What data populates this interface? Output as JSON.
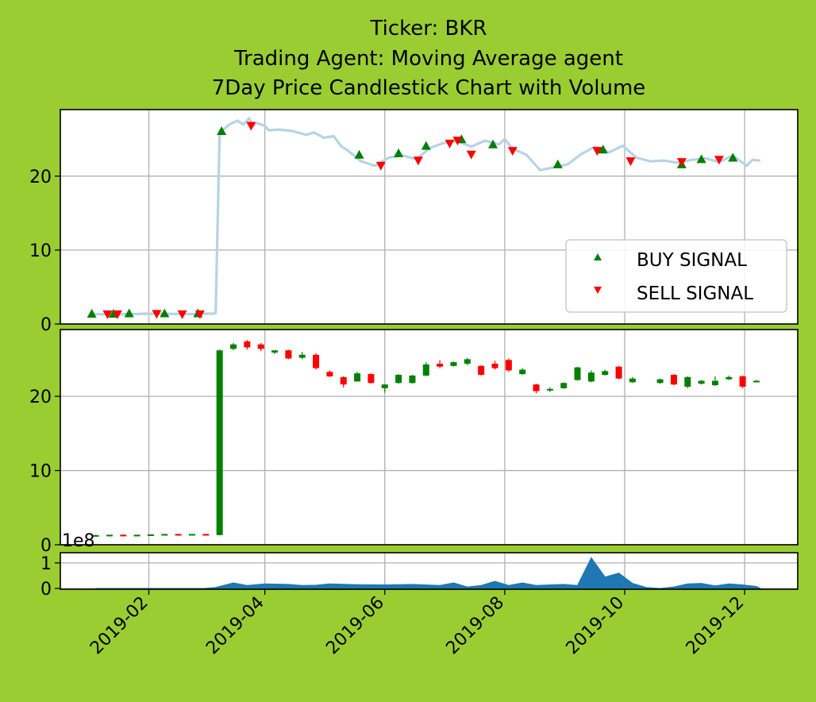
{
  "title": {
    "line1": "Ticker: BKR",
    "line2": "Trading Agent: Moving Average agent",
    "line3": "7Day Price Candlestick Chart with Volume"
  },
  "colors": {
    "background": "#9acd32",
    "price_line": "#b7d3e6",
    "buy": "#007f00",
    "sell": "#ff0000",
    "candle_up": "#008000",
    "candle_down": "#ff0000",
    "volume_fill": "#1f77b4",
    "grid": "#b0b0b0"
  },
  "legend": {
    "buy": "BUY SIGNAL",
    "sell": "SELL SIGNAL",
    "location": "lower-right"
  },
  "chart_data": [
    {
      "type": "line",
      "panel": "price",
      "xlim": [
        "2018-12-18",
        "2019-12-28"
      ],
      "ylim": [
        0,
        29
      ],
      "yticks": [
        0,
        10,
        20
      ],
      "grid": true,
      "series": [
        {
          "role": "close price line",
          "points": [
            [
              "2019-01-02",
              1.35
            ],
            [
              "2019-01-15",
              1.3
            ],
            [
              "2019-02-01",
              1.4
            ],
            [
              "2019-02-15",
              1.35
            ],
            [
              "2019-02-28",
              1.35
            ],
            [
              "2019-03-01",
              1.4
            ],
            [
              "2019-03-06",
              1.4
            ],
            [
              "2019-03-07",
              1.5
            ],
            [
              "2019-03-09",
              26.0
            ],
            [
              "2019-03-11",
              26.3
            ],
            [
              "2019-03-14",
              27.0
            ],
            [
              "2019-03-18",
              27.5
            ],
            [
              "2019-03-21",
              27.0
            ],
            [
              "2019-03-24",
              27.8
            ],
            [
              "2019-03-26",
              26.8
            ],
            [
              "2019-03-28",
              27.2
            ],
            [
              "2019-04-01",
              26.8
            ],
            [
              "2019-04-03",
              26.2
            ],
            [
              "2019-04-08",
              26.3
            ],
            [
              "2019-04-15",
              26.1
            ],
            [
              "2019-04-22",
              25.6
            ],
            [
              "2019-04-26",
              25.9
            ],
            [
              "2019-05-01",
              25.2
            ],
            [
              "2019-05-06",
              25.4
            ],
            [
              "2019-05-10",
              24.0
            ],
            [
              "2019-05-13",
              23.5
            ],
            [
              "2019-05-20",
              22.0
            ],
            [
              "2019-05-27",
              21.4
            ],
            [
              "2019-06-03",
              22.5
            ],
            [
              "2019-06-10",
              22.8
            ],
            [
              "2019-06-17",
              22.3
            ],
            [
              "2019-06-24",
              23.8
            ],
            [
              "2019-07-01",
              24.5
            ],
            [
              "2019-07-08",
              24.7
            ],
            [
              "2019-07-15",
              24.0
            ],
            [
              "2019-07-22",
              24.8
            ],
            [
              "2019-07-29",
              24.3
            ],
            [
              "2019-08-01",
              25.0
            ],
            [
              "2019-08-05",
              23.7
            ],
            [
              "2019-08-12",
              22.9
            ],
            [
              "2019-08-19",
              20.8
            ],
            [
              "2019-08-26",
              21.2
            ],
            [
              "2019-09-02",
              21.6
            ],
            [
              "2019-09-09",
              23.0
            ],
            [
              "2019-09-16",
              24.0
            ],
            [
              "2019-09-23",
              23.2
            ],
            [
              "2019-09-30",
              24.1
            ],
            [
              "2019-10-07",
              22.5
            ],
            [
              "2019-10-14",
              22.0
            ],
            [
              "2019-10-21",
              22.1
            ],
            [
              "2019-10-28",
              21.8
            ],
            [
              "2019-11-04",
              22.2
            ],
            [
              "2019-11-11",
              22.4
            ],
            [
              "2019-11-18",
              21.9
            ],
            [
              "2019-11-25",
              22.8
            ],
            [
              "2019-12-02",
              21.4
            ],
            [
              "2019-12-05",
              22.2
            ],
            [
              "2019-12-09",
              22.1
            ]
          ]
        },
        {
          "name": "BUY SIGNAL",
          "marker": "triangle-up",
          "points": [
            [
              "2019-01-03",
              1.4
            ],
            [
              "2019-01-14",
              1.4
            ],
            [
              "2019-01-22",
              1.45
            ],
            [
              "2019-02-09",
              1.45
            ],
            [
              "2019-02-26",
              1.45
            ],
            [
              "2019-03-10",
              26.1
            ],
            [
              "2019-05-19",
              22.9
            ],
            [
              "2019-06-08",
              23.1
            ],
            [
              "2019-06-22",
              24.1
            ],
            [
              "2019-07-10",
              25.0
            ],
            [
              "2019-07-26",
              24.3
            ],
            [
              "2019-08-28",
              21.6
            ],
            [
              "2019-09-20",
              23.6
            ],
            [
              "2019-10-30",
              21.6
            ],
            [
              "2019-11-09",
              22.3
            ],
            [
              "2019-11-25",
              22.5
            ]
          ]
        },
        {
          "name": "SELL SIGNAL",
          "marker": "triangle-down",
          "points": [
            [
              "2019-01-11",
              1.3
            ],
            [
              "2019-01-16",
              1.3
            ],
            [
              "2019-02-05",
              1.35
            ],
            [
              "2019-02-18",
              1.3
            ],
            [
              "2019-02-27",
              1.3
            ],
            [
              "2019-03-25",
              26.8
            ],
            [
              "2019-05-30",
              21.4
            ],
            [
              "2019-06-18",
              22.1
            ],
            [
              "2019-07-04",
              24.4
            ],
            [
              "2019-07-08",
              24.8
            ],
            [
              "2019-07-15",
              22.9
            ],
            [
              "2019-08-05",
              23.4
            ],
            [
              "2019-09-17",
              23.4
            ],
            [
              "2019-10-04",
              22.0
            ],
            [
              "2019-10-30",
              21.9
            ],
            [
              "2019-11-18",
              22.2
            ]
          ]
        }
      ]
    },
    {
      "type": "candlestick",
      "panel": "candles",
      "xlim": [
        "2019-12-18",
        "2019-12-28"
      ],
      "ylim": [
        0,
        29
      ],
      "yticks": [
        0,
        10,
        20
      ],
      "grid": true,
      "columns": [
        "date",
        "open",
        "high",
        "low",
        "close"
      ],
      "candles": [
        [
          "2019-01-05",
          1.3,
          1.35,
          1.25,
          1.3
        ],
        [
          "2019-01-12",
          1.3,
          1.35,
          1.25,
          1.35
        ],
        [
          "2019-01-19",
          1.35,
          1.4,
          1.3,
          1.3
        ],
        [
          "2019-01-26",
          1.3,
          1.35,
          1.25,
          1.35
        ],
        [
          "2019-02-02",
          1.35,
          1.4,
          1.3,
          1.4
        ],
        [
          "2019-02-09",
          1.4,
          1.45,
          1.35,
          1.45
        ],
        [
          "2019-02-16",
          1.45,
          1.5,
          1.4,
          1.4
        ],
        [
          "2019-02-23",
          1.4,
          1.45,
          1.35,
          1.45
        ],
        [
          "2019-03-02",
          1.45,
          1.5,
          1.4,
          1.4
        ],
        [
          "2019-03-09",
          1.3,
          26.3,
          1.3,
          26.2
        ],
        [
          "2019-03-16",
          26.4,
          27.2,
          26.2,
          27.0
        ],
        [
          "2019-03-23",
          27.4,
          27.6,
          26.3,
          26.6
        ],
        [
          "2019-03-30",
          27.0,
          27.2,
          26.1,
          26.4
        ],
        [
          "2019-04-06",
          25.9,
          26.2,
          25.7,
          26.2
        ],
        [
          "2019-04-13",
          26.2,
          26.3,
          25.0,
          25.1
        ],
        [
          "2019-04-20",
          25.2,
          26.0,
          25.0,
          25.6
        ],
        [
          "2019-04-27",
          25.6,
          25.8,
          23.6,
          23.8
        ],
        [
          "2019-05-04",
          23.3,
          23.5,
          22.6,
          22.7
        ],
        [
          "2019-05-11",
          22.6,
          22.7,
          21.2,
          21.6
        ],
        [
          "2019-05-18",
          22.0,
          23.3,
          22.0,
          23.1
        ],
        [
          "2019-05-25",
          23.0,
          23.1,
          21.7,
          21.8
        ],
        [
          "2019-06-01",
          21.1,
          21.6,
          20.5,
          21.6
        ],
        [
          "2019-06-08",
          21.8,
          23.0,
          21.7,
          22.9
        ],
        [
          "2019-06-15",
          21.8,
          22.9,
          21.7,
          22.8
        ],
        [
          "2019-06-22",
          22.8,
          24.6,
          22.7,
          24.3
        ],
        [
          "2019-06-29",
          24.4,
          24.9,
          23.8,
          24.0
        ],
        [
          "2019-07-06",
          24.1,
          24.7,
          24.0,
          24.6
        ],
        [
          "2019-07-13",
          24.4,
          25.2,
          24.2,
          25.0
        ],
        [
          "2019-07-20",
          24.1,
          24.2,
          22.8,
          22.9
        ],
        [
          "2019-07-27",
          24.4,
          24.8,
          23.6,
          23.8
        ],
        [
          "2019-08-03",
          24.9,
          25.1,
          23.3,
          23.5
        ],
        [
          "2019-08-10",
          23.0,
          23.8,
          22.9,
          23.6
        ],
        [
          "2019-08-17",
          21.6,
          21.7,
          20.4,
          20.7
        ],
        [
          "2019-08-24",
          20.9,
          21.2,
          20.6,
          21.0
        ],
        [
          "2019-08-31",
          21.1,
          21.9,
          21.0,
          21.8
        ],
        [
          "2019-09-07",
          22.2,
          24.0,
          22.1,
          23.9
        ],
        [
          "2019-09-14",
          22.0,
          23.5,
          21.9,
          23.2
        ],
        [
          "2019-09-21",
          22.9,
          23.6,
          22.8,
          23.4
        ],
        [
          "2019-09-28",
          24.0,
          24.1,
          22.3,
          22.4
        ],
        [
          "2019-10-05",
          21.9,
          22.6,
          21.8,
          22.4
        ],
        [
          "2019-10-19",
          21.8,
          22.4,
          21.7,
          22.3
        ],
        [
          "2019-10-26",
          22.9,
          23.0,
          21.5,
          21.6
        ],
        [
          "2019-11-02",
          21.3,
          22.7,
          21.1,
          22.6
        ],
        [
          "2019-11-09",
          21.7,
          22.2,
          21.6,
          22.1
        ],
        [
          "2019-11-16",
          21.5,
          22.7,
          21.4,
          22.1
        ],
        [
          "2019-11-23",
          22.3,
          22.8,
          22.2,
          22.6
        ],
        [
          "2019-11-30",
          22.7,
          22.8,
          21.1,
          21.3
        ],
        [
          "2019-12-07",
          22.0,
          22.2,
          21.9,
          22.1
        ]
      ]
    },
    {
      "type": "area",
      "panel": "volume",
      "xlim": [
        "2018-12-18",
        "2019-12-28"
      ],
      "ylim": [
        -0.03,
        1.4
      ],
      "yticks": [
        0,
        1
      ],
      "offset_label": "1e8",
      "grid": true,
      "points": [
        [
          "2019-01-05",
          0.0
        ],
        [
          "2019-02-01",
          0.0
        ],
        [
          "2019-03-01",
          0.0
        ],
        [
          "2019-03-07",
          0.04
        ],
        [
          "2019-03-16",
          0.22
        ],
        [
          "2019-03-23",
          0.12
        ],
        [
          "2019-04-01",
          0.18
        ],
        [
          "2019-04-13",
          0.16
        ],
        [
          "2019-04-20",
          0.12
        ],
        [
          "2019-04-27",
          0.13
        ],
        [
          "2019-05-04",
          0.18
        ],
        [
          "2019-05-18",
          0.15
        ],
        [
          "2019-06-01",
          0.14
        ],
        [
          "2019-06-15",
          0.16
        ],
        [
          "2019-06-29",
          0.12
        ],
        [
          "2019-07-06",
          0.22
        ],
        [
          "2019-07-13",
          0.06
        ],
        [
          "2019-07-20",
          0.12
        ],
        [
          "2019-07-27",
          0.28
        ],
        [
          "2019-08-03",
          0.12
        ],
        [
          "2019-08-10",
          0.22
        ],
        [
          "2019-08-17",
          0.12
        ],
        [
          "2019-08-24",
          0.14
        ],
        [
          "2019-08-31",
          0.16
        ],
        [
          "2019-09-07",
          0.12
        ],
        [
          "2019-09-14",
          1.2
        ],
        [
          "2019-09-21",
          0.45
        ],
        [
          "2019-09-28",
          0.6
        ],
        [
          "2019-10-05",
          0.2
        ],
        [
          "2019-10-12",
          0.04
        ],
        [
          "2019-10-19",
          0.0
        ],
        [
          "2019-10-26",
          0.06
        ],
        [
          "2019-11-02",
          0.18
        ],
        [
          "2019-11-09",
          0.2
        ],
        [
          "2019-11-16",
          0.1
        ],
        [
          "2019-11-23",
          0.18
        ],
        [
          "2019-11-30",
          0.14
        ],
        [
          "2019-12-07",
          0.08
        ],
        [
          "2019-12-09",
          0.0
        ]
      ]
    }
  ],
  "x_axis": {
    "ticks": [
      {
        "date": "2019-02-01",
        "label": "2019-02"
      },
      {
        "date": "2019-04-01",
        "label": "2019-04"
      },
      {
        "date": "2019-06-01",
        "label": "2019-06"
      },
      {
        "date": "2019-08-01",
        "label": "2019-08"
      },
      {
        "date": "2019-10-01",
        "label": "2019-10"
      },
      {
        "date": "2019-12-01",
        "label": "2019-12"
      }
    ]
  }
}
